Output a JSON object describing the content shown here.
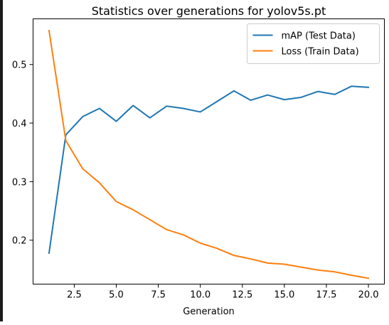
{
  "chart_data": {
    "type": "line",
    "title": "Statistics over generations for yolov5s.pt",
    "xlabel": "Generation",
    "ylabel": "",
    "xlim": [
      0.05,
      20.95
    ],
    "ylim": [
      0.125,
      0.578
    ],
    "x_ticks": [
      2.5,
      5.0,
      7.5,
      10.0,
      12.5,
      15.0,
      17.5,
      20.0
    ],
    "x_tick_labels": [
      "2.5",
      "5.0",
      "7.5",
      "10.0",
      "12.5",
      "15.0",
      "17.5",
      "20.0"
    ],
    "y_ticks": [
      0.2,
      0.3,
      0.4,
      0.5
    ],
    "y_tick_labels": [
      "0.2",
      "0.3",
      "0.4",
      "0.5"
    ],
    "grid": false,
    "legend_position": "top-right",
    "x": [
      1,
      2,
      3,
      4,
      5,
      6,
      7,
      8,
      9,
      10,
      11,
      12,
      13,
      14,
      15,
      16,
      17,
      18,
      19,
      20
    ],
    "series": [
      {
        "name": "mAP (Test Data)",
        "color": "#1f77b4",
        "values": [
          0.178,
          0.38,
          0.411,
          0.425,
          0.403,
          0.43,
          0.409,
          0.429,
          0.425,
          0.419,
          0.437,
          0.455,
          0.439,
          0.448,
          0.44,
          0.444,
          0.454,
          0.449,
          0.463,
          0.461
        ]
      },
      {
        "name": "Loss (Train Data)",
        "color": "#ff7f0e",
        "values": [
          0.558,
          0.37,
          0.322,
          0.298,
          0.266,
          0.252,
          0.235,
          0.218,
          0.209,
          0.195,
          0.186,
          0.174,
          0.168,
          0.161,
          0.159,
          0.154,
          0.149,
          0.146,
          0.14,
          0.135
        ]
      }
    ]
  }
}
